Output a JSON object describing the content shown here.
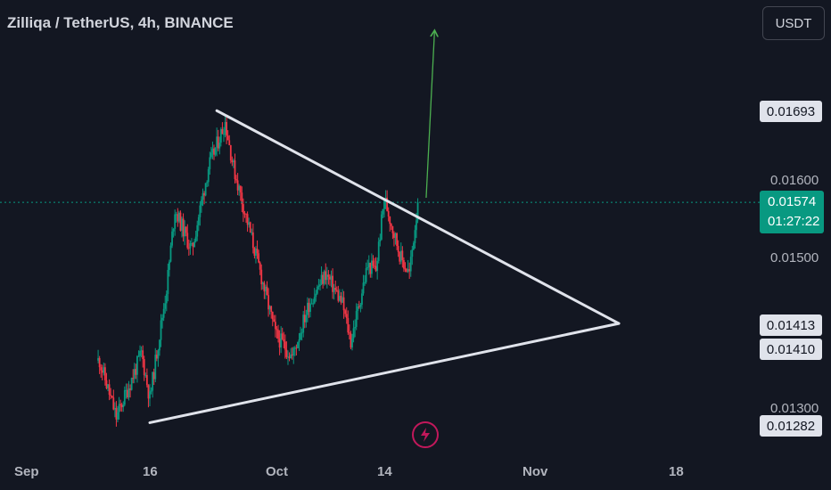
{
  "header": {
    "symbol_title": "Zilliqa / TetherUS, 4h, BINANCE",
    "currency_button": "USDT"
  },
  "price_scale": {
    "plain_labels": [
      "0.01600",
      "0.01500",
      "0.01300"
    ],
    "badges": [
      "0.01693",
      "0.01413",
      "0.01410",
      "0.01282"
    ],
    "current_price": "0.01574",
    "countdown": "01:27:22"
  },
  "time_axis": {
    "labels": [
      "Sep",
      "16",
      "Oct",
      "14",
      "Nov",
      "18"
    ]
  },
  "colors": {
    "background": "#131722",
    "bullish": "#089981",
    "bearish": "#f23645",
    "trendline": "#e0e3eb",
    "projection_arrow": "#4caf50",
    "accent_icon": "#c2185b"
  },
  "icons": {
    "alert_button": "lightning-bolt-icon"
  },
  "chart_data": {
    "type": "candlestick",
    "symbol": "ZILUSDT",
    "timeframe": "4h",
    "exchange": "BINANCE",
    "x_axis_dates": [
      "Sep",
      "16",
      "Oct",
      "14",
      "Nov",
      "18"
    ],
    "y_range": [
      0.0125,
      0.0185
    ],
    "current_price": 0.01574,
    "price_path_keypoints": [
      {
        "date": "2023-09-10",
        "price": 0.01365
      },
      {
        "date": "2023-09-12",
        "price": 0.0129
      },
      {
        "date": "2023-09-14",
        "price": 0.01345
      },
      {
        "date": "2023-09-15",
        "price": 0.01375
      },
      {
        "date": "2023-09-16",
        "price": 0.01315
      },
      {
        "date": "2023-09-18",
        "price": 0.0146
      },
      {
        "date": "2023-09-19",
        "price": 0.01565
      },
      {
        "date": "2023-09-21",
        "price": 0.0151
      },
      {
        "date": "2023-09-23",
        "price": 0.0162
      },
      {
        "date": "2023-09-25",
        "price": 0.0168
      },
      {
        "date": "2023-09-26",
        "price": 0.0162
      },
      {
        "date": "2023-09-29",
        "price": 0.0149
      },
      {
        "date": "2023-10-01",
        "price": 0.014
      },
      {
        "date": "2023-10-03",
        "price": 0.0137
      },
      {
        "date": "2023-10-05",
        "price": 0.0144
      },
      {
        "date": "2023-10-07",
        "price": 0.0148
      },
      {
        "date": "2023-10-09",
        "price": 0.0144
      },
      {
        "date": "2023-10-10",
        "price": 0.0139
      },
      {
        "date": "2023-10-12",
        "price": 0.0149
      },
      {
        "date": "2023-10-13",
        "price": 0.01485
      },
      {
        "date": "2023-10-14",
        "price": 0.0158
      },
      {
        "date": "2023-10-16",
        "price": 0.015
      },
      {
        "date": "2023-10-17",
        "price": 0.0148
      },
      {
        "date": "2023-10-18",
        "price": 0.01574
      }
    ],
    "annotations": [
      {
        "type": "trendline",
        "name": "descending resistance",
        "from": {
          "date": "2023-09-24",
          "price": 0.01695
        },
        "to": {
          "date": "2023-11-11",
          "price": 0.01414
        }
      },
      {
        "type": "trendline",
        "name": "ascending support",
        "from": {
          "date": "2023-09-16",
          "price": 0.01283
        },
        "to": {
          "date": "2023-11-11",
          "price": 0.01414
        }
      },
      {
        "type": "arrow",
        "name": "breakout projection",
        "from": {
          "date": "2023-10-19",
          "price": 0.0158
        },
        "to": {
          "date": "2023-10-20",
          "price": 0.018
        }
      },
      {
        "type": "horizontal_line",
        "name": "current price",
        "price": 0.01574,
        "style": "dotted"
      }
    ]
  }
}
